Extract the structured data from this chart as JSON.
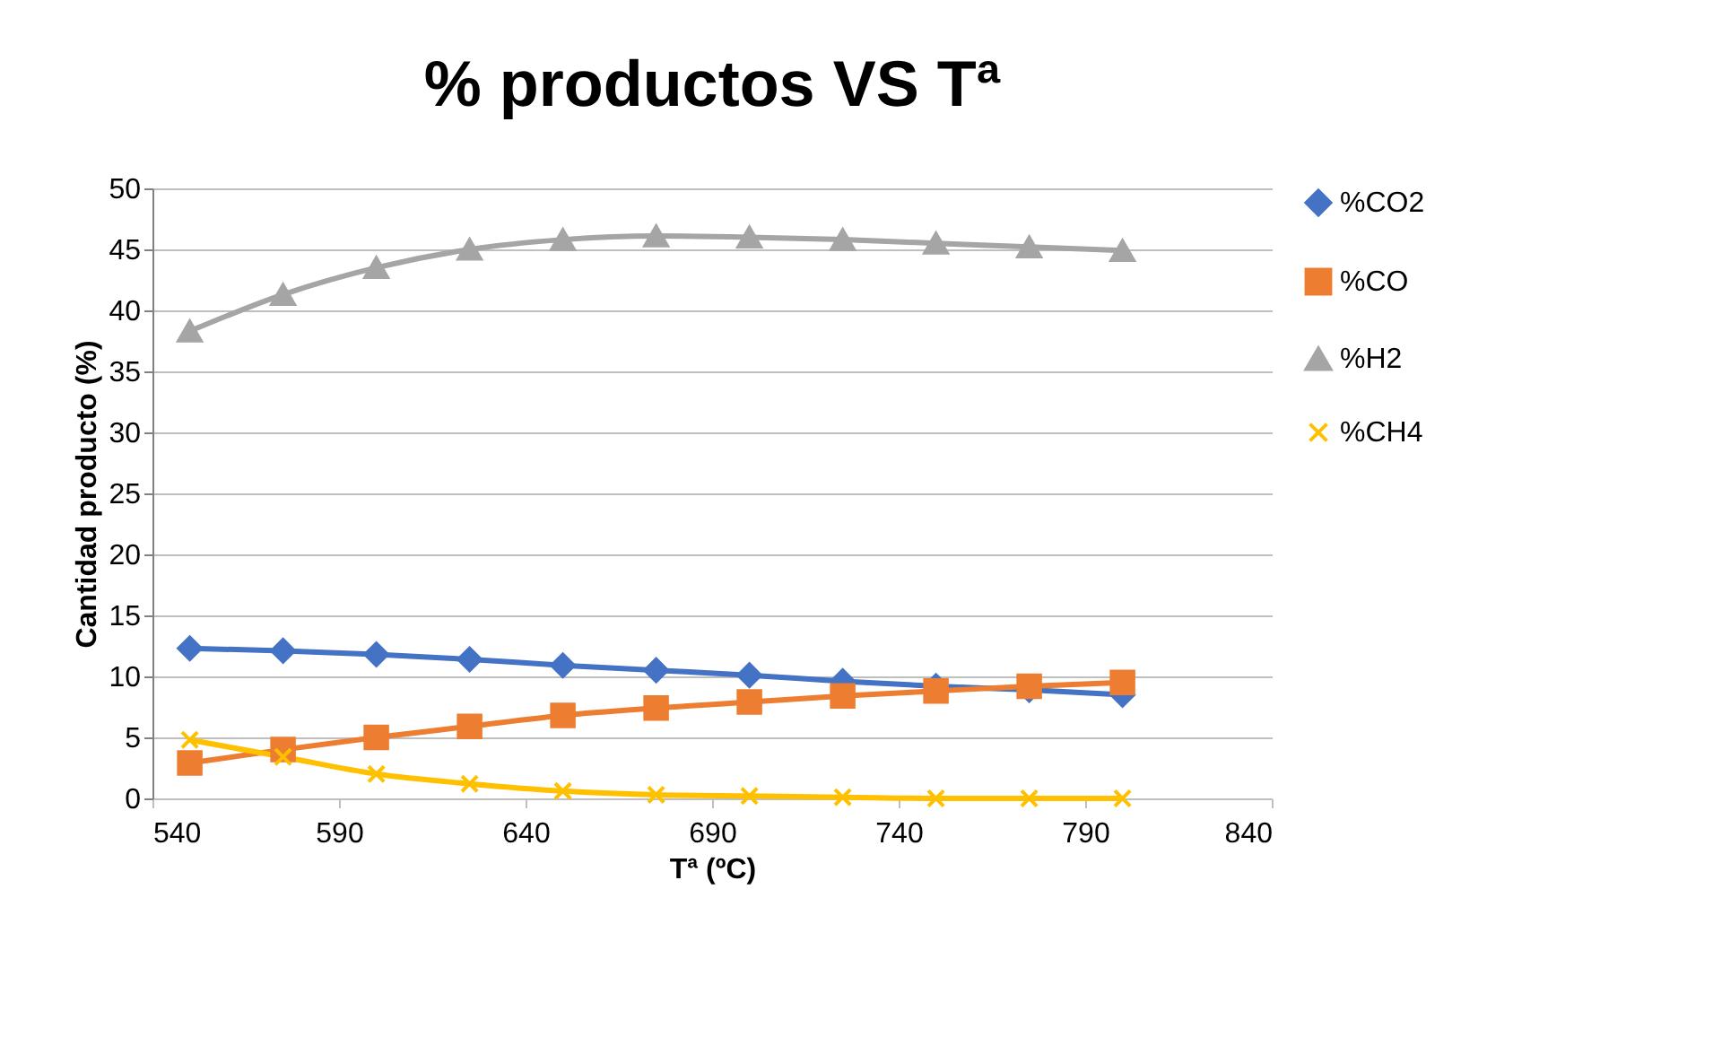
{
  "chart_data": {
    "type": "line",
    "title": "% productos VS Tª",
    "xlabel": "Tª (ºC)",
    "ylabel": "Cantidad producto (%)",
    "x": [
      550,
      575,
      600,
      625,
      650,
      675,
      700,
      725,
      750,
      775,
      800
    ],
    "series": [
      {
        "name": "%CO2",
        "color": "#4472c4",
        "marker": "diamond",
        "values": [
          12.3,
          12.1,
          11.8,
          11.4,
          10.9,
          10.5,
          10.1,
          9.6,
          9.2,
          8.9,
          8.5
        ]
      },
      {
        "name": "%CO",
        "color": "#ed7d31",
        "marker": "square",
        "values": [
          2.9,
          4.0,
          5.0,
          5.9,
          6.8,
          7.4,
          7.9,
          8.4,
          8.8,
          9.2,
          9.5
        ]
      },
      {
        "name": "%H2",
        "color": "#a5a5a5",
        "marker": "triangle",
        "values": [
          38.3,
          41.3,
          43.5,
          45.0,
          45.8,
          46.1,
          46.0,
          45.8,
          45.5,
          45.2,
          44.9
        ]
      },
      {
        "name": "%CH4",
        "color": "#ffc000",
        "marker": "cross",
        "values": [
          4.8,
          3.4,
          2.0,
          1.2,
          0.6,
          0.3,
          0.2,
          0.1,
          0,
          0,
          0
        ]
      }
    ],
    "xlim": [
      540,
      840
    ],
    "xticks": [
      540,
      590,
      640,
      690,
      740,
      790,
      840
    ],
    "ylim": [
      0,
      50
    ],
    "yticks": [
      0,
      5,
      10,
      15,
      20,
      25,
      30,
      35,
      40,
      45,
      50
    ],
    "grid": "y",
    "legend": "right",
    "line_style": "solid"
  }
}
